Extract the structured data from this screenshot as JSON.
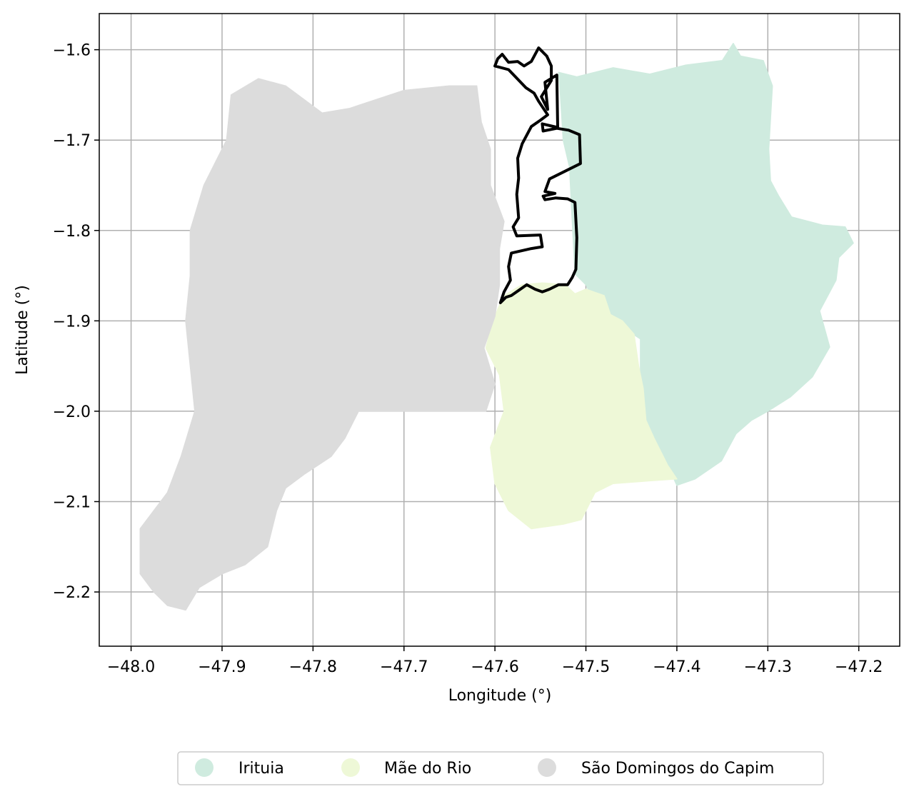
{
  "chart_data": {
    "type": "choropleth-map",
    "xlabel": "Longitude (°)",
    "ylabel": "Latitude (°)",
    "xlim": [
      -48.035,
      -47.155
    ],
    "ylim": [
      -2.26,
      -1.56
    ],
    "x_ticks": [
      -48.0,
      -47.9,
      -47.8,
      -47.7,
      -47.6,
      -47.5,
      -47.4,
      -47.3,
      -47.2
    ],
    "x_tick_labels": [
      "−48.0",
      "−47.9",
      "−47.8",
      "−47.7",
      "−47.6",
      "−47.5",
      "−47.4",
      "−47.3",
      "−47.2"
    ],
    "y_ticks": [
      -1.6,
      -1.7,
      -1.8,
      -1.9,
      -2.0,
      -2.1,
      -2.2
    ],
    "y_tick_labels": [
      "−1.6",
      "−1.7",
      "−1.8",
      "−1.9",
      "−2.0",
      "−2.1",
      "−2.2"
    ],
    "grid": true,
    "legend_placement": "bottom-center",
    "regions": [
      {
        "name": "Irituia",
        "color": "#cfebdf",
        "polygon": [
          [
            -47.53,
            -1.625
          ],
          [
            -47.51,
            -1.63
          ],
          [
            -47.47,
            -1.62
          ],
          [
            -47.43,
            -1.627
          ],
          [
            -47.39,
            -1.617
          ],
          [
            -47.35,
            -1.612
          ],
          [
            -47.338,
            -1.593
          ],
          [
            -47.33,
            -1.607
          ],
          [
            -47.305,
            -1.612
          ],
          [
            -47.295,
            -1.64
          ],
          [
            -47.299,
            -1.71
          ],
          [
            -47.297,
            -1.745
          ],
          [
            -47.288,
            -1.762
          ],
          [
            -47.274,
            -1.785
          ],
          [
            -47.24,
            -1.794
          ],
          [
            -47.215,
            -1.796
          ],
          [
            -47.206,
            -1.814
          ],
          [
            -47.222,
            -1.83
          ],
          [
            -47.225,
            -1.855
          ],
          [
            -47.243,
            -1.889
          ],
          [
            -47.232,
            -1.929
          ],
          [
            -47.251,
            -1.962
          ],
          [
            -47.275,
            -1.984
          ],
          [
            -47.3,
            -2.0
          ],
          [
            -47.318,
            -2.01
          ],
          [
            -47.335,
            -2.025
          ],
          [
            -47.351,
            -2.055
          ],
          [
            -47.38,
            -2.075
          ],
          [
            -47.4,
            -2.082
          ],
          [
            -47.41,
            -2.06
          ],
          [
            -47.43,
            -2.025
          ],
          [
            -47.44,
            -1.98
          ],
          [
            -47.44,
            -1.92
          ],
          [
            -47.47,
            -1.9
          ],
          [
            -47.49,
            -1.88
          ],
          [
            -47.5,
            -1.86
          ],
          [
            -47.512,
            -1.848
          ],
          [
            -47.515,
            -1.79
          ],
          [
            -47.518,
            -1.73
          ],
          [
            -47.525,
            -1.7
          ],
          [
            -47.528,
            -1.65
          ]
        ]
      },
      {
        "name": "Mãe do Rio",
        "color": "#eef8d7",
        "polygon": [
          [
            -47.59,
            -1.872
          ],
          [
            -47.57,
            -1.86
          ],
          [
            -47.548,
            -1.858
          ],
          [
            -47.523,
            -1.86
          ],
          [
            -47.512,
            -1.87
          ],
          [
            -47.5,
            -1.865
          ],
          [
            -47.48,
            -1.872
          ],
          [
            -47.473,
            -1.893
          ],
          [
            -47.46,
            -1.9
          ],
          [
            -47.447,
            -1.915
          ],
          [
            -47.442,
            -1.95
          ],
          [
            -47.437,
            -1.975
          ],
          [
            -47.434,
            -2.01
          ],
          [
            -47.425,
            -2.03
          ],
          [
            -47.41,
            -2.06
          ],
          [
            -47.4,
            -2.075
          ],
          [
            -47.43,
            -2.077
          ],
          [
            -47.47,
            -2.08
          ],
          [
            -47.49,
            -2.09
          ],
          [
            -47.505,
            -2.12
          ],
          [
            -47.525,
            -2.125
          ],
          [
            -47.56,
            -2.13
          ],
          [
            -47.585,
            -2.11
          ],
          [
            -47.6,
            -2.08
          ],
          [
            -47.605,
            -2.04
          ],
          [
            -47.59,
            -2.0
          ],
          [
            -47.595,
            -1.96
          ],
          [
            -47.61,
            -1.93
          ],
          [
            -47.602,
            -1.9
          ],
          [
            -47.596,
            -1.885
          ]
        ]
      },
      {
        "name": "São Domingos do Capim",
        "color": "#dcdcdc",
        "polygon": [
          [
            -47.62,
            -1.64
          ],
          [
            -47.65,
            -1.64
          ],
          [
            -47.7,
            -1.645
          ],
          [
            -47.73,
            -1.655
          ],
          [
            -47.76,
            -1.665
          ],
          [
            -47.79,
            -1.67
          ],
          [
            -47.81,
            -1.655
          ],
          [
            -47.83,
            -1.64
          ],
          [
            -47.86,
            -1.632
          ],
          [
            -47.89,
            -1.65
          ],
          [
            -47.895,
            -1.7
          ],
          [
            -47.92,
            -1.75
          ],
          [
            -47.935,
            -1.8
          ],
          [
            -47.935,
            -1.85
          ],
          [
            -47.94,
            -1.9
          ],
          [
            -47.935,
            -1.95
          ],
          [
            -47.93,
            -2.0
          ],
          [
            -47.945,
            -2.05
          ],
          [
            -47.96,
            -2.09
          ],
          [
            -47.99,
            -2.13
          ],
          [
            -47.99,
            -2.18
          ],
          [
            -47.975,
            -2.2
          ],
          [
            -47.96,
            -2.215
          ],
          [
            -47.94,
            -2.22
          ],
          [
            -47.925,
            -2.195
          ],
          [
            -47.9,
            -2.18
          ],
          [
            -47.875,
            -2.17
          ],
          [
            -47.85,
            -2.15
          ],
          [
            -47.84,
            -2.11
          ],
          [
            -47.83,
            -2.085
          ],
          [
            -47.81,
            -2.07
          ],
          [
            -47.78,
            -2.05
          ],
          [
            -47.765,
            -2.03
          ],
          [
            -47.75,
            -2.0
          ],
          [
            -47.7,
            -2.0
          ],
          [
            -47.65,
            -2.0
          ],
          [
            -47.61,
            -2.0
          ],
          [
            -47.6,
            -1.97
          ],
          [
            -47.612,
            -1.93
          ],
          [
            -47.6,
            -1.895
          ],
          [
            -47.595,
            -1.86
          ],
          [
            -47.595,
            -1.82
          ],
          [
            -47.59,
            -1.79
          ],
          [
            -47.605,
            -1.75
          ],
          [
            -47.605,
            -1.71
          ],
          [
            -47.615,
            -1.68
          ]
        ]
      }
    ],
    "highlight_outline": {
      "color": "#000000",
      "polygon": [
        [
          -47.597,
          -1.61
        ],
        [
          -47.592,
          -1.605
        ],
        [
          -47.585,
          -1.614
        ],
        [
          -47.575,
          -1.613
        ],
        [
          -47.568,
          -1.618
        ],
        [
          -47.56,
          -1.613
        ],
        [
          -47.552,
          -1.598
        ],
        [
          -47.543,
          -1.607
        ],
        [
          -47.538,
          -1.618
        ],
        [
          -47.538,
          -1.634
        ],
        [
          -47.549,
          -1.652
        ],
        [
          -47.542,
          -1.666
        ],
        [
          -47.545,
          -1.636
        ],
        [
          -47.532,
          -1.628
        ],
        [
          -47.531,
          -1.686
        ],
        [
          -47.548,
          -1.682
        ],
        [
          -47.547,
          -1.69
        ],
        [
          -47.532,
          -1.687
        ],
        [
          -47.519,
          -1.689
        ],
        [
          -47.507,
          -1.694
        ],
        [
          -47.506,
          -1.726
        ],
        [
          -47.54,
          -1.743
        ],
        [
          -47.545,
          -1.757
        ],
        [
          -47.534,
          -1.759
        ],
        [
          -47.547,
          -1.762
        ],
        [
          -47.545,
          -1.766
        ],
        [
          -47.533,
          -1.764
        ],
        [
          -47.52,
          -1.765
        ],
        [
          -47.512,
          -1.769
        ],
        [
          -47.51,
          -1.808
        ],
        [
          -47.511,
          -1.843
        ],
        [
          -47.515,
          -1.852
        ],
        [
          -47.52,
          -1.86
        ],
        [
          -47.53,
          -1.86
        ],
        [
          -47.54,
          -1.865
        ],
        [
          -47.548,
          -1.868
        ],
        [
          -47.556,
          -1.865
        ],
        [
          -47.565,
          -1.86
        ],
        [
          -47.572,
          -1.865
        ],
        [
          -47.582,
          -1.872
        ],
        [
          -47.588,
          -1.874
        ],
        [
          -47.594,
          -1.88
        ],
        [
          -47.59,
          -1.868
        ],
        [
          -47.583,
          -1.855
        ],
        [
          -47.585,
          -1.84
        ],
        [
          -47.582,
          -1.825
        ],
        [
          -47.56,
          -1.82
        ],
        [
          -47.548,
          -1.818
        ],
        [
          -47.55,
          -1.805
        ],
        [
          -47.576,
          -1.806
        ],
        [
          -47.58,
          -1.796
        ],
        [
          -47.574,
          -1.786
        ],
        [
          -47.576,
          -1.76
        ],
        [
          -47.574,
          -1.742
        ],
        [
          -47.575,
          -1.72
        ],
        [
          -47.57,
          -1.704
        ],
        [
          -47.56,
          -1.685
        ],
        [
          -47.55,
          -1.678
        ],
        [
          -47.542,
          -1.672
        ],
        [
          -47.552,
          -1.657
        ],
        [
          -47.557,
          -1.648
        ],
        [
          -47.566,
          -1.642
        ],
        [
          -47.585,
          -1.622
        ],
        [
          -47.6,
          -1.618
        ]
      ]
    },
    "legend_entries": [
      {
        "label": "Irituia",
        "color": "#cfebdf"
      },
      {
        "label": "Mãe do Rio",
        "color": "#eef8d7"
      },
      {
        "label": "São Domingos do Capim",
        "color": "#dcdcdc"
      }
    ]
  }
}
